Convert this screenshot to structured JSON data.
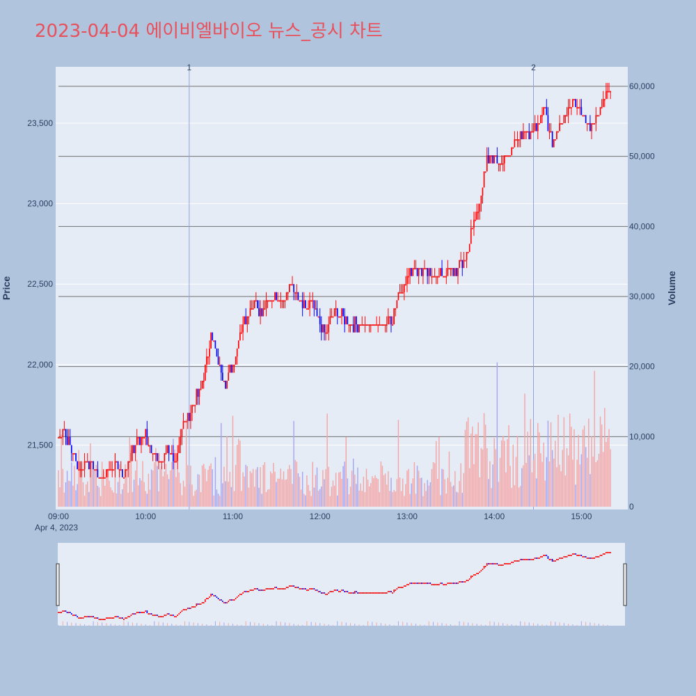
{
  "title": "2023-04-04 에이비엘바이오 뉴스_공시 차트",
  "colors": {
    "background": "#b0c4de",
    "plot_bg": "#e5ecf6",
    "title": "#e8515c",
    "up": "#ff0000",
    "down": "#0000ff",
    "up_volume": "#f4a6a6",
    "down_volume": "#a6a6f4",
    "marker_line": "#8ea2e0",
    "hline": "#707070"
  },
  "axes": {
    "price_label": "Price",
    "volume_label": "Volume",
    "price_ticks": [
      "21,500",
      "22,000",
      "22,500",
      "23,000",
      "23,500"
    ],
    "volume_ticks": [
      "0",
      "10,000",
      "20,000",
      "30,000",
      "40,000",
      "50,000",
      "60,000"
    ],
    "time_ticks": [
      "09:00",
      "10:00",
      "11:00",
      "12:00",
      "13:00",
      "14:00",
      "15:00"
    ],
    "date_label": "Apr 4, 2023"
  },
  "markers": [
    "1",
    "2"
  ],
  "chart_data": {
    "type": "candlestick",
    "date": "2023-04-04",
    "price_range": [
      21100,
      23850
    ],
    "volume_range": [
      0,
      60000
    ],
    "time_range": [
      "09:00",
      "15:30"
    ],
    "news_markers": [
      {
        "label": "1",
        "time": "10:30"
      },
      {
        "label": "2",
        "time": "14:27"
      }
    ],
    "horizontal_levels_volume": [
      10000,
      20000,
      30000,
      40000,
      50000,
      60000
    ],
    "price_path": [
      [
        "09:00",
        21550
      ],
      [
        "09:03",
        21600
      ],
      [
        "09:06",
        21550
      ],
      [
        "09:10",
        21450
      ],
      [
        "09:15",
        21350
      ],
      [
        "09:20",
        21400
      ],
      [
        "09:25",
        21350
      ],
      [
        "09:30",
        21300
      ],
      [
        "09:35",
        21350
      ],
      [
        "09:40",
        21400
      ],
      [
        "09:45",
        21300
      ],
      [
        "09:50",
        21450
      ],
      [
        "09:55",
        21550
      ],
      [
        "10:00",
        21550
      ],
      [
        "10:05",
        21450
      ],
      [
        "10:10",
        21400
      ],
      [
        "10:15",
        21450
      ],
      [
        "10:20",
        21400
      ],
      [
        "10:25",
        21600
      ],
      [
        "10:30",
        21700
      ],
      [
        "10:35",
        21800
      ],
      [
        "10:40",
        21900
      ],
      [
        "10:45",
        22200
      ],
      [
        "10:50",
        22000
      ],
      [
        "10:55",
        21900
      ],
      [
        "11:00",
        22000
      ],
      [
        "11:05",
        22200
      ],
      [
        "11:10",
        22300
      ],
      [
        "11:15",
        22400
      ],
      [
        "11:20",
        22300
      ],
      [
        "11:25",
        22400
      ],
      [
        "11:30",
        22450
      ],
      [
        "11:35",
        22400
      ],
      [
        "11:40",
        22500
      ],
      [
        "11:45",
        22400
      ],
      [
        "11:50",
        22350
      ],
      [
        "11:55",
        22400
      ],
      [
        "12:00",
        22250
      ],
      [
        "12:05",
        22200
      ],
      [
        "12:10",
        22350
      ],
      [
        "12:15",
        22300
      ],
      [
        "12:20",
        22250
      ],
      [
        "12:30",
        22250
      ],
      [
        "12:40",
        22250
      ],
      [
        "12:50",
        22300
      ],
      [
        "12:55",
        22450
      ],
      [
        "13:00",
        22550
      ],
      [
        "13:05",
        22600
      ],
      [
        "13:15",
        22550
      ],
      [
        "13:25",
        22550
      ],
      [
        "13:35",
        22600
      ],
      [
        "13:40",
        22650
      ],
      [
        "13:45",
        22850
      ],
      [
        "13:50",
        23000
      ],
      [
        "13:55",
        23250
      ],
      [
        "14:00",
        23300
      ],
      [
        "14:05",
        23250
      ],
      [
        "14:10",
        23300
      ],
      [
        "14:15",
        23400
      ],
      [
        "14:20",
        23450
      ],
      [
        "14:25",
        23450
      ],
      [
        "14:30",
        23500
      ],
      [
        "14:35",
        23600
      ],
      [
        "14:40",
        23350
      ],
      [
        "14:45",
        23500
      ],
      [
        "14:50",
        23550
      ],
      [
        "14:55",
        23650
      ],
      [
        "15:00",
        23600
      ],
      [
        "15:05",
        23450
      ],
      [
        "15:10",
        23550
      ],
      [
        "15:15",
        23650
      ],
      [
        "15:20",
        23700
      ]
    ],
    "close_price": 23700
  }
}
